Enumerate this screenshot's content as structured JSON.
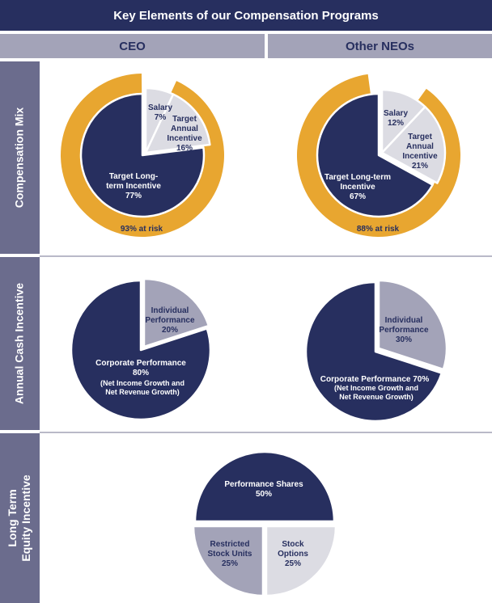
{
  "title": "Key Elements of our Compensation Programs",
  "columns": [
    "CEO",
    "Other NEOs"
  ],
  "rows": [
    "Compensation Mix",
    "Annual Cash Incentive",
    "Long Term\nEquity Incentive"
  ],
  "colors": {
    "navy": "#272f5f",
    "header_bg": "#a3a3b8",
    "row_label_bg": "#6b6c8d",
    "gold": "#e8a630",
    "light_gray": "#dcdce3",
    "mid_gray": "#a3a3b8",
    "white": "#ffffff"
  },
  "chart_data": [
    {
      "type": "pie",
      "title": "Compensation Mix — CEO",
      "slices": [
        {
          "label": "Salary 7%",
          "value": 7
        },
        {
          "label": "Target Annual Incentive 16%",
          "value": 16
        },
        {
          "label": "Target Long-term Incentive 77%",
          "value": 77
        }
      ],
      "ring": {
        "label": "93% at risk",
        "value": 93
      }
    },
    {
      "type": "pie",
      "title": "Compensation Mix — Other NEOs",
      "slices": [
        {
          "label": "Salary 12%",
          "value": 12
        },
        {
          "label": "Target Annual Incentive 21%",
          "value": 21
        },
        {
          "label": "Target Long-term Incentive 67%",
          "value": 67
        }
      ],
      "ring": {
        "label": "88% at risk",
        "value": 88
      }
    },
    {
      "type": "pie",
      "title": "Annual Cash Incentive — CEO",
      "slices": [
        {
          "label": "Individual Performance 20%",
          "value": 20
        },
        {
          "label": "Corporate Performance 80% (Net Income Growth and Net Revenue Growth)",
          "value": 80
        }
      ]
    },
    {
      "type": "pie",
      "title": "Annual Cash Incentive — Other NEOs",
      "slices": [
        {
          "label": "Individual Performance 30%",
          "value": 30
        },
        {
          "label": "Corporate Performance 70% (Net Income Growth and Net Revenue Growth)",
          "value": 70
        }
      ]
    },
    {
      "type": "pie",
      "title": "Long Term Equity Incentive",
      "slices": [
        {
          "label": "Performance Shares 50%",
          "value": 50
        },
        {
          "label": "Restricted Stock Units 25%",
          "value": 25
        },
        {
          "label": "Stock Options 25%",
          "value": 25
        }
      ]
    }
  ],
  "text": {
    "ceo_mix": {
      "salary": [
        "Salary",
        "7%"
      ],
      "annual": [
        "Target",
        "Annual",
        "Incentive",
        "16%"
      ],
      "lti": [
        "Target Long-",
        "term Incentive",
        "77%"
      ],
      "ring": "93% at risk"
    },
    "neo_mix": {
      "salary": [
        "Salary",
        "12%"
      ],
      "annual": [
        "Target",
        "Annual",
        "Incentive",
        "21%"
      ],
      "lti": [
        "Target Long-term",
        "Incentive",
        "67%"
      ],
      "ring": "88% at risk"
    },
    "ceo_aci": {
      "individual": [
        "Individual",
        "Performance",
        "20%"
      ],
      "corporate": [
        "Corporate Performance",
        "80%"
      ],
      "corporate_sub": [
        "(Net Income Growth and",
        "Net Revenue Growth)"
      ]
    },
    "neo_aci": {
      "individual": [
        "Individual",
        "Performance",
        "30%"
      ],
      "corporate": [
        "Corporate Performance 70%"
      ],
      "corporate_sub": [
        "(Net Income Growth and",
        "Net Revenue Growth)"
      ]
    },
    "lti": {
      "perf": [
        "Performance Shares",
        "50%"
      ],
      "rsu": [
        "Restricted",
        "Stock Units",
        "25%"
      ],
      "options": [
        "Stock",
        "Options",
        "25%"
      ]
    }
  }
}
